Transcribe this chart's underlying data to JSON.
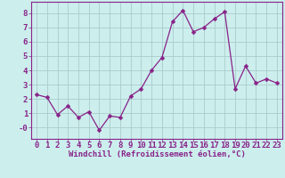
{
  "x": [
    0,
    1,
    2,
    3,
    4,
    5,
    6,
    7,
    8,
    9,
    10,
    11,
    12,
    13,
    14,
    15,
    16,
    17,
    18,
    19,
    20,
    21,
    22,
    23
  ],
  "y": [
    2.3,
    2.1,
    0.9,
    1.5,
    0.7,
    1.1,
    -0.2,
    0.8,
    0.7,
    2.2,
    2.7,
    4.0,
    4.9,
    7.4,
    8.2,
    6.7,
    7.0,
    7.6,
    8.1,
    2.7,
    4.3,
    3.1,
    3.4,
    3.1
  ],
  "line_color": "#882288",
  "marker": "D",
  "marker_size": 2.5,
  "bg_color": "#cceeed",
  "grid_color": "#aacccc",
  "axis_color": "#882288",
  "xlabel": "Windchill (Refroidissement éolien,°C)",
  "xlabel_fontsize": 6.5,
  "tick_fontsize": 6.5,
  "ylim": [
    -0.8,
    8.8
  ],
  "xlim": [
    -0.5,
    23.5
  ],
  "yticks": [
    0,
    1,
    2,
    3,
    4,
    5,
    6,
    7,
    8
  ],
  "xticks": [
    0,
    1,
    2,
    3,
    4,
    5,
    6,
    7,
    8,
    9,
    10,
    11,
    12,
    13,
    14,
    15,
    16,
    17,
    18,
    19,
    20,
    21,
    22,
    23
  ]
}
